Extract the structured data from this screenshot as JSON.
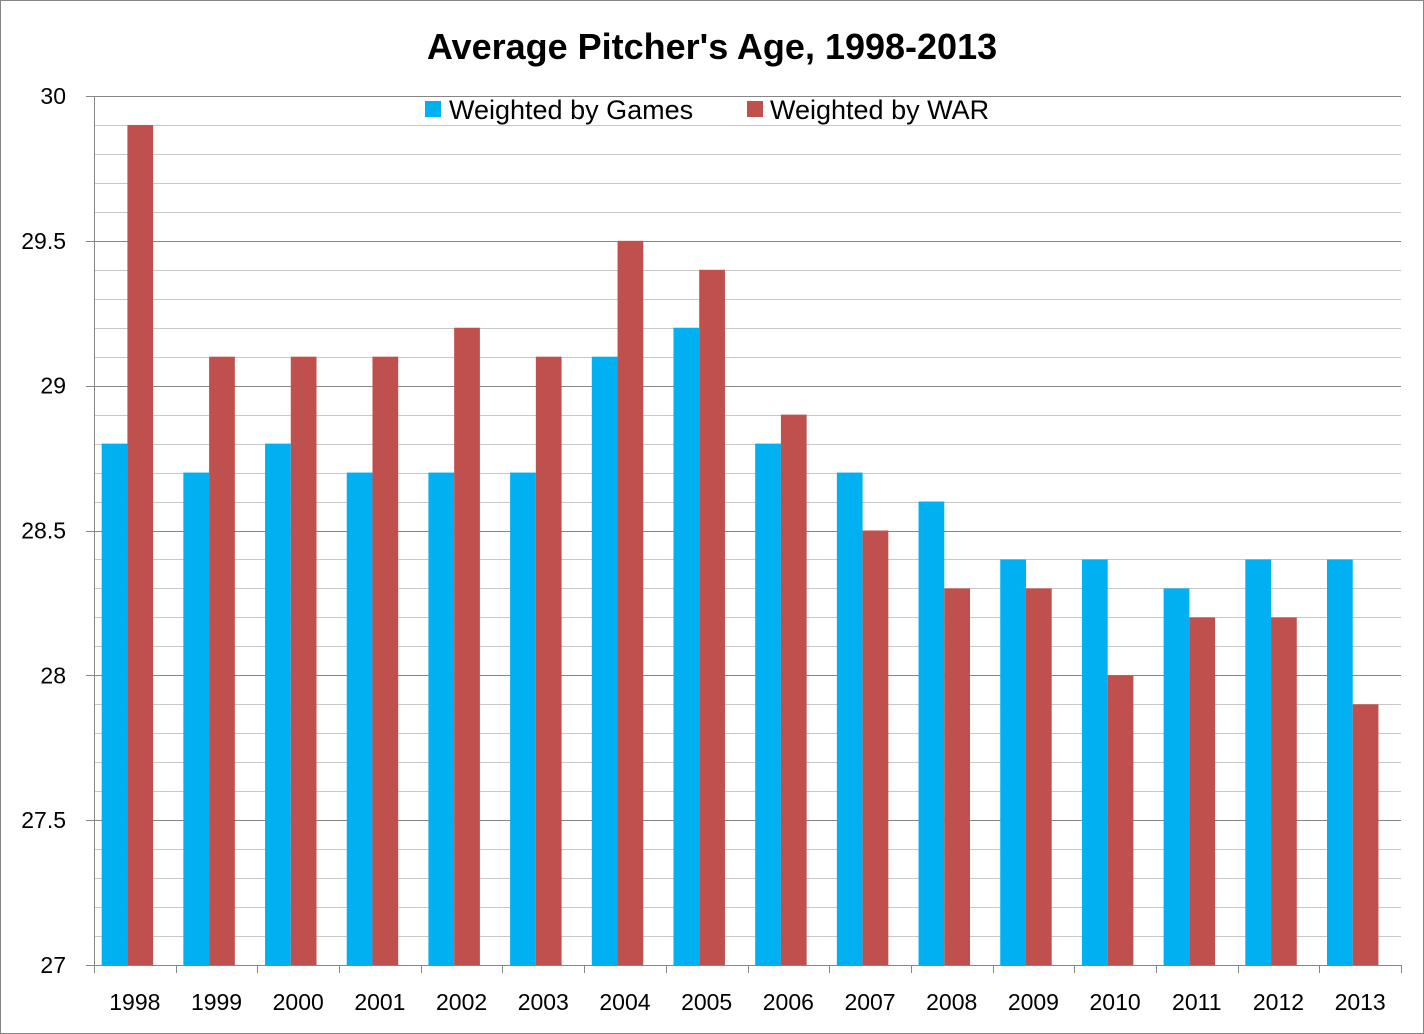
{
  "chart_data": {
    "type": "bar",
    "title": "Average Pitcher's Age, 1998-2013",
    "xlabel": "",
    "ylabel": "",
    "ylim": [
      27,
      30
    ],
    "yticks": [
      "27",
      "27.5",
      "28",
      "28.5",
      "29",
      "29.5",
      "30"
    ],
    "grid": true,
    "legend_position": "top-center",
    "categories": [
      "1998",
      "1999",
      "2000",
      "2001",
      "2002",
      "2003",
      "2004",
      "2005",
      "2006",
      "2007",
      "2008",
      "2009",
      "2010",
      "2011",
      "2012",
      "2013"
    ],
    "series": [
      {
        "name": "Weighted by Games",
        "color": "#00B0F0",
        "values": [
          28.8,
          28.7,
          28.8,
          28.7,
          28.7,
          28.7,
          29.1,
          29.2,
          28.8,
          28.7,
          28.6,
          28.4,
          28.4,
          28.3,
          28.4,
          28.4
        ]
      },
      {
        "name": "Weighted by WAR",
        "color": "#C0504D",
        "values": [
          29.9,
          29.1,
          29.1,
          29.1,
          29.2,
          29.1,
          29.5,
          29.4,
          28.9,
          28.5,
          28.3,
          28.3,
          28.0,
          28.2,
          28.2,
          27.9
        ]
      }
    ]
  }
}
